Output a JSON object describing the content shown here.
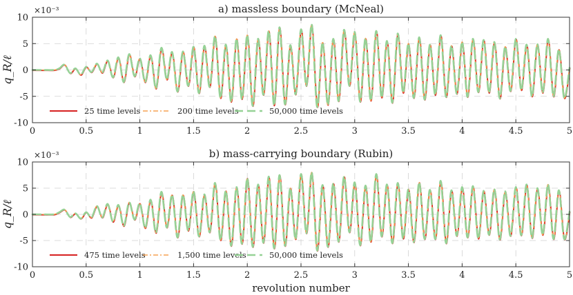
{
  "chart_data": [
    {
      "type": "line",
      "title": "a) massless boundary (McNeal)",
      "ylabel": "q_R/ℓ",
      "xlabel": "",
      "xlim": [
        0,
        5
      ],
      "ylim": [
        -10,
        10
      ],
      "y_exponent": "×10⁻³",
      "xticks": [
        "0",
        "0.5",
        "1",
        "1.5",
        "2",
        "2.5",
        "3",
        "3.5",
        "4",
        "4.5",
        "5"
      ],
      "yticks": [
        "-10",
        "-5",
        "0",
        "5",
        "10"
      ],
      "grid": true,
      "legend_position": "bottom-left",
      "series": [
        {
          "name": "25 time levels",
          "color": "#d62020",
          "style": "solid"
        },
        {
          "name": "200 time levels",
          "color": "#f5a050",
          "style": "dashdot"
        },
        {
          "name": "50,000 time levels",
          "color": "#96d296",
          "style": "dashed"
        }
      ],
      "x": [
        0,
        0.1,
        0.2,
        0.25,
        0.3,
        0.35,
        0.4,
        0.45,
        0.5,
        0.55,
        0.6,
        0.65,
        0.7,
        0.75,
        0.8,
        0.85,
        0.9,
        0.95,
        1.0,
        1.05,
        1.1,
        1.15,
        1.2,
        1.25,
        1.3,
        1.35,
        1.4,
        1.45,
        1.5,
        1.55,
        1.6,
        1.65,
        1.7,
        1.75,
        1.8,
        1.85,
        1.9,
        1.95,
        2.0,
        2.05,
        2.1,
        2.15,
        2.2,
        2.25,
        2.3,
        2.35,
        2.4,
        2.45,
        2.5,
        2.55,
        2.6,
        2.65,
        2.7,
        2.75,
        2.8,
        2.85,
        2.9,
        2.95,
        3.0,
        3.05,
        3.1,
        3.15,
        3.2,
        3.25,
        3.3,
        3.35,
        3.4,
        3.45,
        3.5,
        3.55,
        3.6,
        3.65,
        3.7,
        3.75,
        3.8,
        3.85,
        3.9,
        3.95,
        4.0,
        4.05,
        4.1,
        4.15,
        4.2,
        4.25,
        4.3,
        4.35,
        4.4,
        4.45,
        4.5,
        4.55,
        4.6,
        4.65,
        4.7,
        4.75,
        4.8,
        4.85,
        4.9,
        4.95,
        5.0
      ],
      "y": [
        0,
        0,
        0,
        0.3,
        1.0,
        -0.6,
        0.3,
        -0.9,
        0.6,
        -0.4,
        1.2,
        -0.5,
        1.8,
        -1.4,
        2.4,
        -2.3,
        3.0,
        -1.2,
        2.2,
        -2.3,
        2.8,
        -3.5,
        4.2,
        -1.8,
        3.4,
        -4.1,
        3.5,
        -3.0,
        4.4,
        -4.4,
        4.6,
        -3.2,
        6.4,
        -5.3,
        4.8,
        -6.0,
        5.9,
        -5.5,
        6.6,
        -6.8,
        5.9,
        -4.7,
        7.4,
        -6.7,
        8.1,
        -6.5,
        4.7,
        -4.6,
        7.7,
        -3.0,
        8.6,
        -7.0,
        5.2,
        -6.6,
        5.9,
        -5.9,
        7.6,
        -3.0,
        7.2,
        -6.0,
        6.0,
        -5.8,
        7.4,
        -5.2,
        5.5,
        -6.2,
        6.9,
        -4.3,
        5.0,
        -5.3,
        6.2,
        -5.6,
        4.8,
        -4.7,
        6.6,
        -5.1,
        4.6,
        -4.5,
        5.3,
        -5.1,
        5.9,
        -4.2,
        5.7,
        -4.3,
        5.3,
        -5.4,
        4.4,
        -4.0,
        5.9,
        -3.8,
        4.8,
        -5.0,
        4.9,
        -4.3,
        5.9,
        -5.0,
        3.9,
        -5.3,
        0.4
      ]
    },
    {
      "type": "line",
      "title": "b) mass-carrying boundary (Rubin)",
      "ylabel": "q_R/ℓ",
      "xlabel": "revolution number",
      "xlim": [
        0,
        5
      ],
      "ylim": [
        -10,
        10
      ],
      "y_exponent": "×10⁻³",
      "xticks": [
        "0",
        "0.5",
        "1",
        "1.5",
        "2",
        "2.5",
        "3",
        "3.5",
        "4",
        "4.5",
        "5"
      ],
      "yticks": [
        "-10",
        "-5",
        "0",
        "5",
        "10"
      ],
      "grid": true,
      "legend_position": "bottom-left",
      "series": [
        {
          "name": "475 time levels",
          "color": "#d62020",
          "style": "solid"
        },
        {
          "name": "1,500 time levels",
          "color": "#f5a050",
          "style": "dashdot"
        },
        {
          "name": "50,000 time levels",
          "color": "#96d296",
          "style": "dashed"
        }
      ],
      "x": [
        0,
        0.1,
        0.2,
        0.25,
        0.3,
        0.35,
        0.4,
        0.45,
        0.5,
        0.55,
        0.6,
        0.65,
        0.7,
        0.75,
        0.8,
        0.85,
        0.9,
        0.95,
        1.0,
        1.05,
        1.1,
        1.15,
        1.2,
        1.25,
        1.3,
        1.35,
        1.4,
        1.45,
        1.5,
        1.55,
        1.6,
        1.65,
        1.7,
        1.75,
        1.8,
        1.85,
        1.9,
        1.95,
        2.0,
        2.05,
        2.1,
        2.15,
        2.2,
        2.25,
        2.3,
        2.35,
        2.4,
        2.45,
        2.5,
        2.55,
        2.6,
        2.65,
        2.7,
        2.75,
        2.8,
        2.85,
        2.9,
        2.95,
        3.0,
        3.05,
        3.1,
        3.15,
        3.2,
        3.25,
        3.3,
        3.35,
        3.4,
        3.45,
        3.5,
        3.55,
        3.6,
        3.65,
        3.7,
        3.75,
        3.8,
        3.85,
        3.9,
        3.95,
        4.0,
        4.05,
        4.1,
        4.15,
        4.2,
        4.25,
        4.3,
        4.35,
        4.4,
        4.45,
        4.5,
        4.55,
        4.6,
        4.65,
        4.7,
        4.75,
        4.8,
        4.85,
        4.9,
        4.95,
        5.0
      ],
      "y": [
        0,
        0,
        0,
        0.4,
        0.9,
        -0.5,
        0.2,
        -0.8,
        0.4,
        -0.6,
        1.6,
        -0.6,
        2.0,
        -1.4,
        1.8,
        -2.2,
        2.3,
        -1.0,
        2.1,
        -2.6,
        2.8,
        -3.5,
        4.3,
        -2.5,
        3.7,
        -4.4,
        3.7,
        -3.1,
        4.4,
        -4.2,
        3.8,
        -3.4,
        6.0,
        -4.9,
        4.5,
        -6.0,
        5.2,
        -5.6,
        6.9,
        -6.2,
        5.7,
        -5.4,
        7.2,
        -6.5,
        7.5,
        -6.0,
        5.0,
        -4.7,
        7.7,
        -3.6,
        8.0,
        -6.9,
        5.6,
        -6.2,
        5.9,
        -5.2,
        7.2,
        -3.4,
        6.1,
        -5.9,
        5.5,
        -5.2,
        7.7,
        -4.2,
        5.7,
        -5.5,
        6.0,
        -4.6,
        4.8,
        -5.3,
        6.1,
        -4.7,
        4.7,
        -4.7,
        6.4,
        -5.5,
        4.6,
        -4.1,
        5.2,
        -4.4,
        5.4,
        -4.6,
        4.5,
        -3.9,
        4.8,
        -4.8,
        4.4,
        -4.1,
        5.2,
        -4.0,
        5.7,
        -4.5,
        5.0,
        -3.9,
        5.7,
        -4.7,
        4.6,
        -4.7,
        0.5
      ]
    }
  ]
}
